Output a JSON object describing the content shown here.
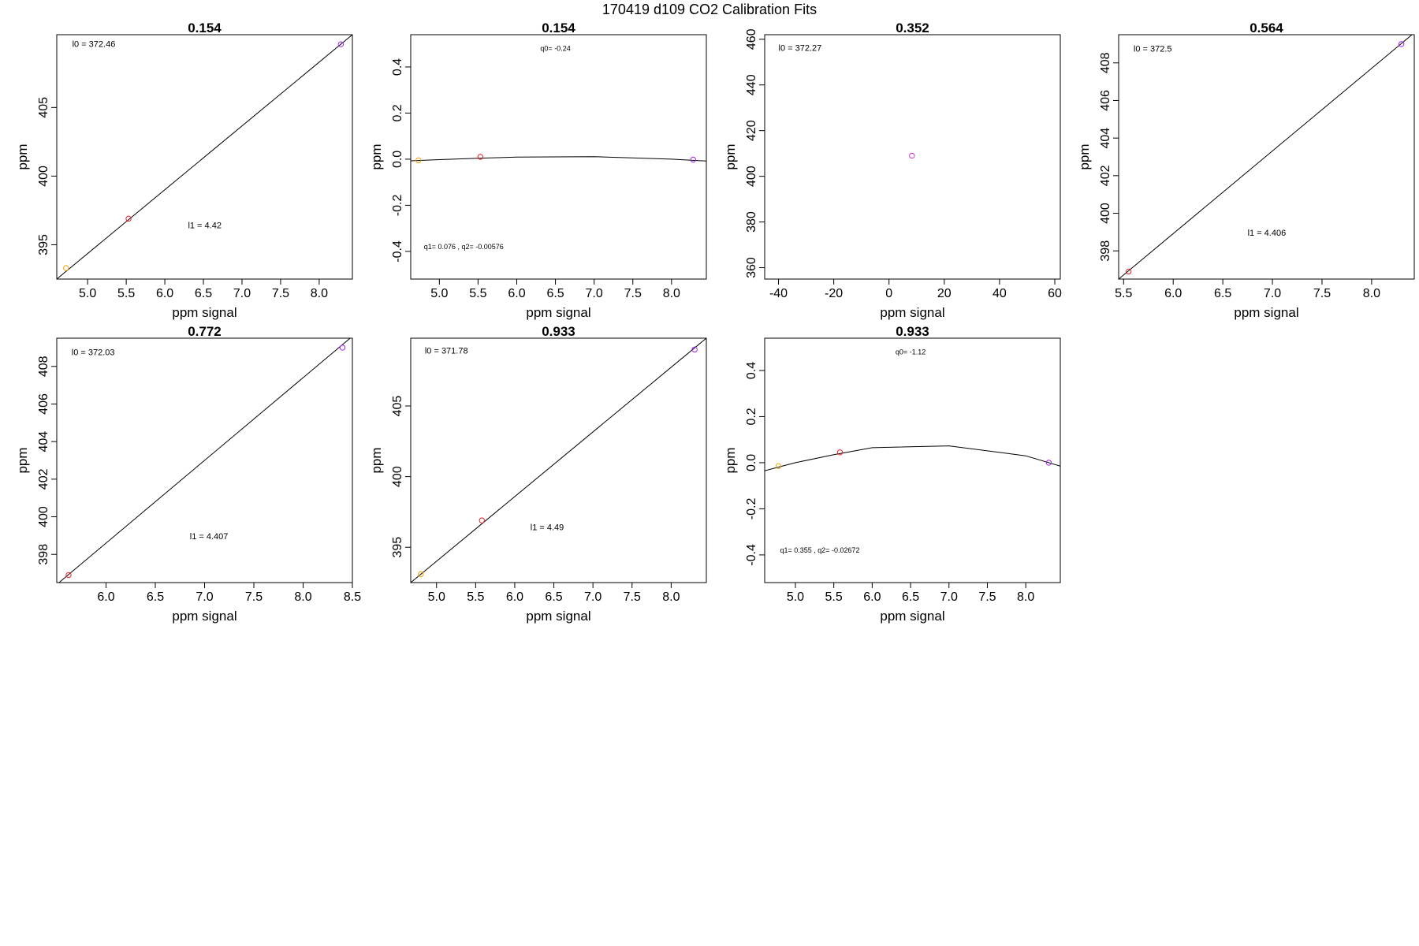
{
  "figure_title": "170419   d109   CO2 Calibration Fits",
  "colors": {
    "orange": "#f5a000",
    "red": "#e8202a",
    "purple": "#a020f0",
    "magenta": "#d030d0",
    "line": "#000000"
  },
  "chart_data": [
    {
      "type": "scatter",
      "title": "0.154",
      "xlabel": "ppm signal",
      "ylabel": "ppm",
      "xlim": [
        4.6,
        8.43
      ],
      "ylim": [
        392.5,
        410.3
      ],
      "xticks": [
        {
          "v": 5.0,
          "t": "5.0"
        },
        {
          "v": 5.5,
          "t": "5.5"
        },
        {
          "v": 6.0,
          "t": "6.0"
        },
        {
          "v": 6.5,
          "t": "6.5"
        },
        {
          "v": 7.0,
          "t": "7.0"
        },
        {
          "v": 7.5,
          "t": "7.5"
        },
        {
          "v": 8.0,
          "t": "8.0"
        }
      ],
      "yticks": [
        {
          "v": 395,
          "t": "395"
        },
        {
          "v": 400,
          "t": "400"
        },
        {
          "v": 405,
          "t": "405"
        }
      ],
      "points": [
        {
          "x": 4.72,
          "y": 393.3,
          "c": "orange"
        },
        {
          "x": 5.53,
          "y": 396.9,
          "c": "red"
        },
        {
          "x": 8.28,
          "y": 409.6,
          "c": "purple"
        }
      ],
      "line": [
        [
          4.6,
          392.5
        ],
        [
          8.43,
          410.3
        ]
      ],
      "annotations": [
        {
          "text": "l0 =  372.46",
          "x": 4.8,
          "y": 409.4,
          "size": "normal"
        },
        {
          "text": "l1 =  4.42",
          "x": 6.3,
          "y": 396.2,
          "size": "normal"
        }
      ]
    },
    {
      "type": "scatter",
      "title": "0.154",
      "xlabel": "ppm signal",
      "ylabel": "ppm",
      "xlim": [
        4.63,
        8.45
      ],
      "ylim": [
        -0.52,
        0.54
      ],
      "xticks": [
        {
          "v": 5.0,
          "t": "5.0"
        },
        {
          "v": 5.5,
          "t": "5.5"
        },
        {
          "v": 6.0,
          "t": "6.0"
        },
        {
          "v": 6.5,
          "t": "6.5"
        },
        {
          "v": 7.0,
          "t": "7.0"
        },
        {
          "v": 7.5,
          "t": "7.5"
        },
        {
          "v": 8.0,
          "t": "8.0"
        }
      ],
      "yticks": [
        {
          "v": -0.4,
          "t": "-0.4"
        },
        {
          "v": -0.2,
          "t": "-0.2"
        },
        {
          "v": 0.0,
          "t": "0.0"
        },
        {
          "v": 0.2,
          "t": "0.2"
        },
        {
          "v": 0.4,
          "t": "0.4"
        }
      ],
      "points": [
        {
          "x": 4.73,
          "y": -0.005,
          "c": "orange"
        },
        {
          "x": 5.53,
          "y": 0.01,
          "c": "red"
        },
        {
          "x": 8.28,
          "y": -0.002,
          "c": "purple"
        }
      ],
      "line": [
        [
          4.63,
          -0.007
        ],
        [
          5.0,
          -0.002
        ],
        [
          5.5,
          0.004
        ],
        [
          6.0,
          0.009
        ],
        [
          7.0,
          0.011
        ],
        [
          8.0,
          0.0
        ],
        [
          8.45,
          -0.008
        ]
      ],
      "annotations": [
        {
          "text": "q0= -0.24",
          "x": 6.5,
          "y": 0.47,
          "size": "small",
          "anchor": "middle"
        },
        {
          "text": "q1= 0.076 , q2= -0.00576",
          "x": 4.8,
          "y": -0.39,
          "size": "small"
        }
      ]
    },
    {
      "type": "scatter",
      "title": "0.352",
      "xlabel": "ppm signal",
      "ylabel": "ppm",
      "xlim": [
        -45,
        62
      ],
      "ylim": [
        355,
        462
      ],
      "xticks": [
        {
          "v": -40,
          "t": "-40"
        },
        {
          "v": -20,
          "t": "-20"
        },
        {
          "v": 0,
          "t": "0"
        },
        {
          "v": 20,
          "t": "20"
        },
        {
          "v": 40,
          "t": "40"
        },
        {
          "v": 60,
          "t": "60"
        }
      ],
      "yticks": [
        {
          "v": 360,
          "t": "360"
        },
        {
          "v": 380,
          "t": "380"
        },
        {
          "v": 400,
          "t": "400"
        },
        {
          "v": 420,
          "t": "420"
        },
        {
          "v": 440,
          "t": "440"
        },
        {
          "v": 460,
          "t": "460"
        }
      ],
      "points": [
        {
          "x": 8.3,
          "y": 409.0,
          "c": "magenta"
        }
      ],
      "line": [],
      "annotations": [
        {
          "text": "l0 =  372.27",
          "x": -40,
          "y": 455,
          "size": "normal"
        }
      ]
    },
    {
      "type": "scatter",
      "title": "0.564",
      "xlabel": "ppm signal",
      "ylabel": "ppm",
      "xlim": [
        5.45,
        8.43
      ],
      "ylim": [
        396.5,
        409.5
      ],
      "xticks": [
        {
          "v": 5.5,
          "t": "5.5"
        },
        {
          "v": 6.0,
          "t": "6.0"
        },
        {
          "v": 6.5,
          "t": "6.5"
        },
        {
          "v": 7.0,
          "t": "7.0"
        },
        {
          "v": 7.5,
          "t": "7.5"
        },
        {
          "v": 8.0,
          "t": "8.0"
        }
      ],
      "yticks": [
        {
          "v": 398,
          "t": "398"
        },
        {
          "v": 400,
          "t": "400"
        },
        {
          "v": 402,
          "t": "402"
        },
        {
          "v": 404,
          "t": "404"
        },
        {
          "v": 406,
          "t": "406"
        },
        {
          "v": 408,
          "t": "408"
        }
      ],
      "points": [
        {
          "x": 5.55,
          "y": 396.9,
          "c": "red"
        },
        {
          "x": 8.3,
          "y": 409.0,
          "c": "purple"
        }
      ],
      "line": [
        [
          5.45,
          396.5
        ],
        [
          8.43,
          409.6
        ]
      ],
      "annotations": [
        {
          "text": "l0 =  372.5",
          "x": 5.6,
          "y": 408.6,
          "size": "normal"
        },
        {
          "text": "l1 =  4.406",
          "x": 6.75,
          "y": 398.8,
          "size": "normal"
        }
      ]
    },
    {
      "type": "scatter",
      "title": "0.772",
      "xlabel": "ppm signal",
      "ylabel": "ppm",
      "xlim": [
        5.5,
        8.5
      ],
      "ylim": [
        396.5,
        409.5
      ],
      "xticks": [
        {
          "v": 6.0,
          "t": "6.0"
        },
        {
          "v": 6.5,
          "t": "6.5"
        },
        {
          "v": 7.0,
          "t": "7.0"
        },
        {
          "v": 7.5,
          "t": "7.5"
        },
        {
          "v": 8.0,
          "t": "8.0"
        },
        {
          "v": 8.5,
          "t": "8.5"
        }
      ],
      "yticks": [
        {
          "v": 398,
          "t": "398"
        },
        {
          "v": 400,
          "t": "400"
        },
        {
          "v": 402,
          "t": "402"
        },
        {
          "v": 404,
          "t": "404"
        },
        {
          "v": 406,
          "t": "406"
        },
        {
          "v": 408,
          "t": "408"
        }
      ],
      "points": [
        {
          "x": 5.62,
          "y": 396.9,
          "c": "red"
        },
        {
          "x": 8.4,
          "y": 409.0,
          "c": "purple"
        }
      ],
      "line": [
        [
          5.5,
          396.4
        ],
        [
          8.5,
          409.6
        ]
      ],
      "annotations": [
        {
          "text": "l0 =  372.03",
          "x": 5.65,
          "y": 408.6,
          "size": "normal"
        },
        {
          "text": "l1 =  4.407",
          "x": 6.85,
          "y": 398.8,
          "size": "normal"
        }
      ]
    },
    {
      "type": "scatter",
      "title": "0.933",
      "xlabel": "ppm signal",
      "ylabel": "ppm",
      "xlim": [
        4.67,
        8.45
      ],
      "ylim": [
        392.5,
        409.8
      ],
      "xticks": [
        {
          "v": 5.0,
          "t": "5.0"
        },
        {
          "v": 5.5,
          "t": "5.5"
        },
        {
          "v": 6.0,
          "t": "6.0"
        },
        {
          "v": 6.5,
          "t": "6.5"
        },
        {
          "v": 7.0,
          "t": "7.0"
        },
        {
          "v": 7.5,
          "t": "7.5"
        },
        {
          "v": 8.0,
          "t": "8.0"
        }
      ],
      "yticks": [
        {
          "v": 395,
          "t": "395"
        },
        {
          "v": 400,
          "t": "400"
        },
        {
          "v": 405,
          "t": "405"
        }
      ],
      "points": [
        {
          "x": 4.8,
          "y": 393.1,
          "c": "orange"
        },
        {
          "x": 5.58,
          "y": 396.9,
          "c": "red"
        },
        {
          "x": 8.3,
          "y": 409.0,
          "c": "purple"
        }
      ],
      "line": [
        [
          4.67,
          392.5
        ],
        [
          8.45,
          409.8
        ]
      ],
      "annotations": [
        {
          "text": "l0 =  371.78",
          "x": 4.85,
          "y": 408.7,
          "size": "normal"
        },
        {
          "text": "l1 =  4.49",
          "x": 6.2,
          "y": 396.2,
          "size": "normal"
        }
      ]
    },
    {
      "type": "scatter",
      "title": "0.933",
      "xlabel": "ppm signal",
      "ylabel": "ppm",
      "xlim": [
        4.6,
        8.45
      ],
      "ylim": [
        -0.52,
        0.54
      ],
      "xticks": [
        {
          "v": 5.0,
          "t": "5.0"
        },
        {
          "v": 5.5,
          "t": "5.5"
        },
        {
          "v": 6.0,
          "t": "6.0"
        },
        {
          "v": 6.5,
          "t": "6.5"
        },
        {
          "v": 7.0,
          "t": "7.0"
        },
        {
          "v": 7.5,
          "t": "7.5"
        },
        {
          "v": 8.0,
          "t": "8.0"
        }
      ],
      "yticks": [
        {
          "v": -0.4,
          "t": "-0.4"
        },
        {
          "v": -0.2,
          "t": "-0.2"
        },
        {
          "v": 0.0,
          "t": "0.0"
        },
        {
          "v": 0.2,
          "t": "0.2"
        },
        {
          "v": 0.4,
          "t": "0.4"
        }
      ],
      "points": [
        {
          "x": 4.78,
          "y": -0.015,
          "c": "orange"
        },
        {
          "x": 5.58,
          "y": 0.045,
          "c": "red"
        },
        {
          "x": 8.3,
          "y": 0.0,
          "c": "purple"
        }
      ],
      "line": [
        [
          4.6,
          -0.035
        ],
        [
          5.0,
          0.0
        ],
        [
          5.5,
          0.035
        ],
        [
          6.0,
          0.065
        ],
        [
          7.0,
          0.073
        ],
        [
          8.0,
          0.03
        ],
        [
          8.45,
          -0.015
        ]
      ],
      "annotations": [
        {
          "text": "q0= -1.12",
          "x": 6.5,
          "y": 0.47,
          "size": "small",
          "anchor": "middle"
        },
        {
          "text": "q1= 0.355 , q2= -0.02672",
          "x": 4.8,
          "y": -0.39,
          "size": "small"
        }
      ]
    }
  ]
}
